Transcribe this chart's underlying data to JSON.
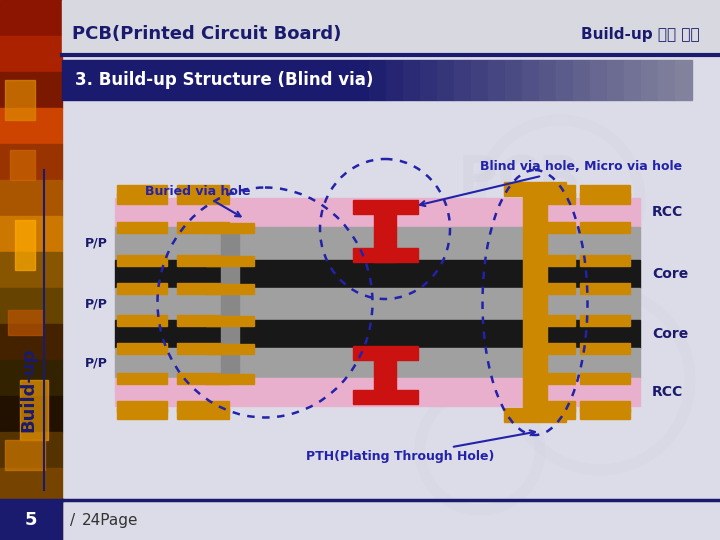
{
  "title_left": "PCB(Printed Circuit Board)",
  "title_right": "Build-up 교육 자료",
  "subtitle": "3. Build-up Structure (Blind via)",
  "bg_color": "#dcdce8",
  "label_buried": "Buried via hole",
  "label_blind": "Blind via hole, Micro via hole",
  "label_pth": "PTH(Plating Through Hole)",
  "label_rcc_top": "RCC",
  "label_rcc_bot": "RCC",
  "label_core1": "Core",
  "label_core2": "Core",
  "label_pp1": "P/P",
  "label_pp2": "P/P",
  "label_pp3": "P/P",
  "page_num": "5",
  "page_text": "24Page",
  "color_pink": "#e8b0cc",
  "color_orange": "#cc8800",
  "color_gray": "#a0a0a0",
  "color_black": "#181818",
  "color_red": "#cc1111",
  "color_dkblue": "#2222aa"
}
